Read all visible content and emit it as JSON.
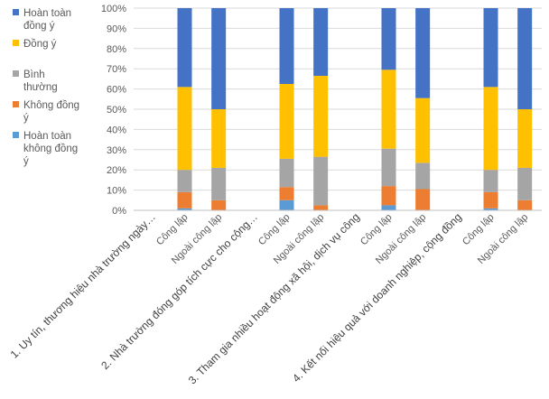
{
  "chart_data": {
    "type": "bar",
    "stacked": "percent",
    "title": "",
    "xlabel": "",
    "ylabel": "",
    "ylim": [
      0,
      100
    ],
    "y_ticks": [
      "0%",
      "10%",
      "20%",
      "30%",
      "40%",
      "50%",
      "60%",
      "70%",
      "80%",
      "90%",
      "100%"
    ],
    "groups": [
      "1. Uy tín, thương hiệu nhà trường ngày…",
      "2. Nhà trường đóng góp tích cực cho cộng…",
      "3. Tham gia nhiều hoạt động xã hội, dịch vụ công",
      "4. Kết nối hiệu quả với doanh nghiệp, cộng đồng"
    ],
    "categories": [
      "Công lập",
      "Ngoài công lập",
      "Công lập",
      "Ngoài công lập",
      "Công lập",
      "Ngoài công lập",
      "Công lập",
      "Ngoài công lập"
    ],
    "legend_position": "left",
    "series": [
      {
        "name": "Hoàn toàn không đồng ý",
        "color": "#5B9BD5",
        "values": [
          1,
          0,
          5,
          0,
          2.5,
          0,
          1,
          0
        ]
      },
      {
        "name": "Không đồng ý",
        "color": "#ED7D31",
        "values": [
          8,
          5,
          6.5,
          2.5,
          9.5,
          10.5,
          8,
          5
        ]
      },
      {
        "name": "Bình thường",
        "color": "#A5A5A5",
        "values": [
          11,
          16,
          14,
          24,
          18.5,
          13,
          11,
          16
        ]
      },
      {
        "name": "Đồng ý",
        "color": "#FFC000",
        "values": [
          41,
          29,
          37,
          40,
          39,
          32,
          41,
          29
        ]
      },
      {
        "name": "Hoàn toàn đồng ý",
        "color": "#4472C4",
        "values": [
          39,
          50,
          37.5,
          33.5,
          30.5,
          44.5,
          39,
          50
        ]
      }
    ]
  }
}
